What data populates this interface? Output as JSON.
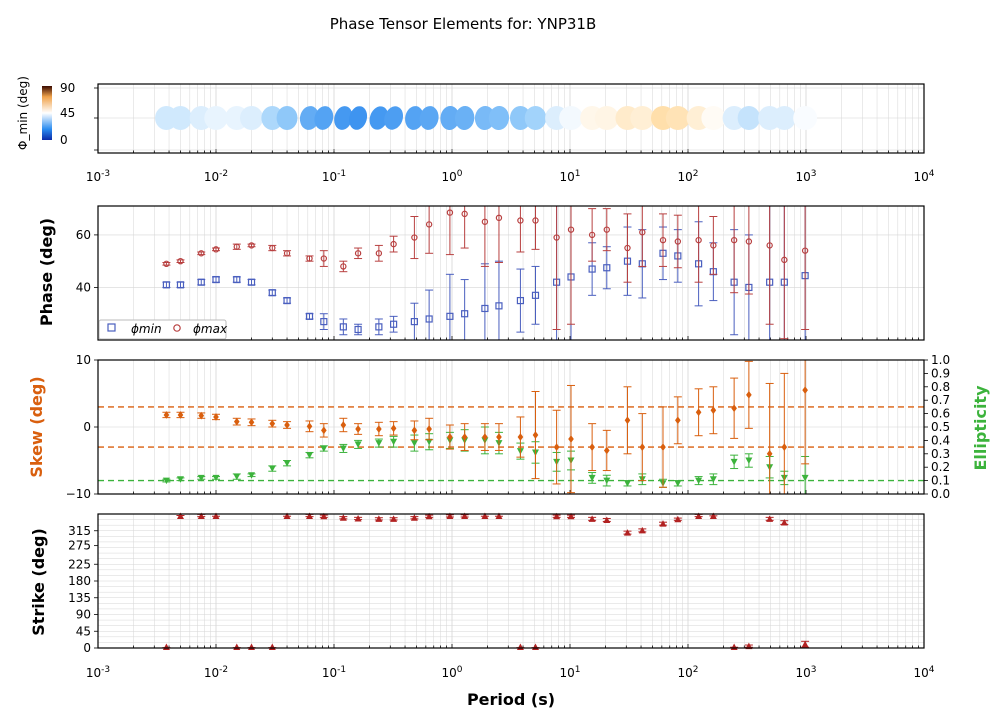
{
  "title": "Phase Tensor Elements for: YNP31B",
  "colors": {
    "phimin": "#4a5fbf",
    "phimax": "#b84040",
    "skew": "#d95f0e",
    "ellipticity": "#3cb33c",
    "strike": "#b22222",
    "grid": "#d6d6d6"
  },
  "chart_data": [
    {
      "type": "scatter",
      "panel": "ellipses",
      "ylabel": "Φ_min (deg)",
      "colorbar": {
        "ticks": [
          "0",
          "45",
          "90"
        ],
        "colormap": "blue-white-orange"
      },
      "x_scale": "log",
      "xlim": [
        0.001,
        10000
      ],
      "x_ticks": [
        "10^-3",
        "10^-2",
        "10^-1",
        "10^0",
        "10^1",
        "10^2",
        "10^3",
        "10^4"
      ],
      "ellipses": [
        {
          "period": 0.0038,
          "phimin": 41,
          "angle": 0
        },
        {
          "period": 0.005,
          "phimin": 41,
          "angle": 0
        },
        {
          "period": 0.0075,
          "phimin": 42,
          "angle": 0
        },
        {
          "period": 0.01,
          "phimin": 43,
          "angle": 0
        },
        {
          "period": 0.015,
          "phimin": 43,
          "angle": 0
        },
        {
          "period": 0.02,
          "phimin": 42,
          "angle": 0
        },
        {
          "period": 0.03,
          "phimin": 38,
          "angle": 0
        },
        {
          "period": 0.04,
          "phimin": 35,
          "angle": 0
        },
        {
          "period": 0.062,
          "phimin": 29,
          "angle": 10
        },
        {
          "period": 0.082,
          "phimin": 27,
          "angle": 15
        },
        {
          "period": 0.12,
          "phimin": 25,
          "angle": 15
        },
        {
          "period": 0.16,
          "phimin": 24,
          "angle": 15
        },
        {
          "period": 0.24,
          "phimin": 25,
          "angle": 20
        },
        {
          "period": 0.32,
          "phimin": 26,
          "angle": 20
        },
        {
          "period": 0.48,
          "phimin": 27,
          "angle": 10
        },
        {
          "period": 0.64,
          "phimin": 28,
          "angle": 10
        },
        {
          "period": 0.96,
          "phimin": 29,
          "angle": 5
        },
        {
          "period": 1.28,
          "phimin": 30,
          "angle": 5
        },
        {
          "period": 1.9,
          "phimin": 32,
          "angle": 5
        },
        {
          "period": 2.5,
          "phimin": 33,
          "angle": 5
        },
        {
          "period": 3.8,
          "phimin": 35,
          "angle": 0
        },
        {
          "period": 5.1,
          "phimin": 37,
          "angle": 0
        },
        {
          "period": 7.7,
          "phimin": 42,
          "angle": 0
        },
        {
          "period": 10.2,
          "phimin": 44,
          "angle": 0
        },
        {
          "period": 15.4,
          "phimin": 47,
          "angle": 0
        },
        {
          "period": 20.5,
          "phimin": 47.5,
          "angle": 0
        },
        {
          "period": 30.7,
          "phimin": 50,
          "angle": 0
        },
        {
          "period": 41.0,
          "phimin": 49,
          "angle": 0
        },
        {
          "period": 61.4,
          "phimin": 53,
          "angle": 0
        },
        {
          "period": 82.0,
          "phimin": 52,
          "angle": 0
        },
        {
          "period": 123.0,
          "phimin": 49,
          "angle": 0
        },
        {
          "period": 164.0,
          "phimin": 46,
          "angle": 0
        },
        {
          "period": 246.0,
          "phimin": 42,
          "angle": 0
        },
        {
          "period": 328.0,
          "phimin": 40,
          "angle": 0
        },
        {
          "period": 492.0,
          "phimin": 42,
          "angle": 0
        },
        {
          "period": 655.0,
          "phimin": 42,
          "angle": 0
        },
        {
          "period": 983.0,
          "phimin": 44.5,
          "angle": 0
        }
      ]
    },
    {
      "type": "scatter",
      "panel": "phase",
      "ylabel": "Phase (deg)",
      "x_scale": "log",
      "xlim": [
        0.001,
        10000
      ],
      "ylim": [
        20,
        71
      ],
      "y_ticks": [
        40,
        60
      ],
      "legend": {
        "placement": "bottom-left",
        "entries": [
          "ϕmin",
          "ϕmax"
        ]
      },
      "series": [
        {
          "name": "ϕmin",
          "marker": "square",
          "x": [
            0.0038,
            0.005,
            0.0075,
            0.01,
            0.015,
            0.02,
            0.03,
            0.04,
            0.062,
            0.082,
            0.12,
            0.16,
            0.24,
            0.32,
            0.48,
            0.64,
            0.96,
            1.28,
            1.9,
            2.5,
            3.8,
            5.1,
            7.7,
            10.2,
            15.4,
            20.5,
            30.7,
            41.0,
            61.4,
            82.0,
            123.0,
            164.0,
            246.0,
            328.0,
            492.0,
            655.0,
            983.0
          ],
          "y": [
            41,
            41,
            42,
            43,
            43,
            42,
            38,
            35,
            29,
            27,
            25,
            24,
            25,
            26,
            27,
            28,
            29,
            30,
            32,
            33,
            35,
            37,
            42,
            44,
            47,
            47.5,
            50,
            49,
            53,
            52,
            49,
            46,
            42,
            40,
            42,
            42,
            44.5
          ],
          "err": [
            1,
            1,
            1,
            1,
            1,
            1,
            1,
            1,
            1,
            3,
            3,
            2,
            3,
            3,
            7,
            11,
            16,
            13,
            17,
            17,
            12,
            11,
            35,
            31,
            10,
            8,
            13,
            13,
            10,
            10,
            16,
            11,
            20,
            20,
            30,
            30,
            30
          ]
        },
        {
          "name": "ϕmax",
          "marker": "circle",
          "x": [
            0.0038,
            0.005,
            0.0075,
            0.01,
            0.015,
            0.02,
            0.03,
            0.04,
            0.062,
            0.082,
            0.12,
            0.16,
            0.24,
            0.32,
            0.48,
            0.64,
            0.96,
            1.28,
            1.9,
            2.5,
            3.8,
            5.1,
            7.7,
            10.2,
            15.4,
            20.5,
            30.7,
            41.0,
            61.4,
            82.0,
            123.0,
            164.0,
            246.0,
            328.0,
            492.0,
            655.0,
            983.0
          ],
          "y": [
            49,
            50,
            53,
            54.5,
            55.5,
            56,
            55,
            53,
            51,
            51,
            48,
            53,
            53,
            56.5,
            59,
            64,
            68.5,
            68,
            65,
            66.5,
            65.5,
            65.5,
            59,
            62,
            60,
            62,
            55,
            61,
            58,
            57.5,
            58,
            56,
            58,
            57.5,
            56,
            50.5,
            54
          ],
          "err": [
            0.5,
            0.5,
            0.5,
            0.5,
            1,
            0.5,
            1,
            1,
            1,
            3,
            2,
            2,
            3,
            3,
            8,
            11,
            16,
            13,
            17,
            17,
            12,
            11,
            35,
            36,
            10,
            8,
            13,
            13,
            10,
            10,
            16,
            11,
            20,
            20,
            30,
            30,
            30
          ]
        }
      ]
    },
    {
      "type": "scatter",
      "panel": "skew-ellipticity",
      "ylabel": "Skew (deg)",
      "ylabel_right": "Ellipticity",
      "x_scale": "log",
      "xlim": [
        0.001,
        10000
      ],
      "ylim": [
        -10,
        10
      ],
      "ylim_right": [
        0,
        1
      ],
      "y_ticks": [
        -10,
        0,
        10
      ],
      "y_ticks_right": [
        "0.0",
        "0.1",
        "0.2",
        "0.3",
        "0.4",
        "0.5",
        "0.6",
        "0.7",
        "0.8",
        "0.9",
        "1.0"
      ],
      "reference_lines_skew": [
        3,
        -3
      ],
      "reference_line_ellipticity": 0.1,
      "series": [
        {
          "name": "Skew",
          "marker": "diamond",
          "x": [
            0.0038,
            0.005,
            0.0075,
            0.01,
            0.015,
            0.02,
            0.03,
            0.04,
            0.062,
            0.082,
            0.12,
            0.16,
            0.24,
            0.32,
            0.48,
            0.64,
            0.96,
            1.28,
            1.9,
            2.5,
            3.8,
            5.1,
            7.7,
            10.2,
            15.4,
            20.5,
            30.7,
            41.0,
            61.4,
            82.0,
            123.0,
            164.0,
            246.0,
            328.0,
            492.0,
            655.0,
            983.0
          ],
          "y": [
            1.8,
            1.8,
            1.7,
            1.5,
            0.8,
            0.7,
            0.5,
            0.3,
            0.1,
            -0.5,
            0.3,
            -0.3,
            -0.3,
            -0.2,
            -0.5,
            -0.3,
            -1.5,
            -1.5,
            -1.5,
            -1.5,
            -1.5,
            -1.2,
            -3.0,
            -1.8,
            -3.0,
            -3.5,
            1.0,
            -3.0,
            -3.0,
            1.0,
            2.2,
            2.5,
            2.8,
            4.8,
            -4.0,
            -3.0,
            5.5
          ],
          "err": [
            0.4,
            0.4,
            0.4,
            0.4,
            0.5,
            0.5,
            0.5,
            0.5,
            0.8,
            1.0,
            1.0,
            0.8,
            1.0,
            1.0,
            1.4,
            1.6,
            1.8,
            2.0,
            2.0,
            2.0,
            3.0,
            6.5,
            5.5,
            8.0,
            3.5,
            3.0,
            5.0,
            5.0,
            6.0,
            3.5,
            3.5,
            3.5,
            4.5,
            5.0,
            10.5,
            11.0,
            11.0
          ]
        },
        {
          "name": "Ellipticity",
          "marker": "triangle-down",
          "x": [
            0.0038,
            0.005,
            0.0075,
            0.01,
            0.015,
            0.02,
            0.03,
            0.04,
            0.062,
            0.082,
            0.12,
            0.16,
            0.24,
            0.32,
            0.48,
            0.64,
            0.96,
            1.28,
            1.9,
            2.5,
            3.8,
            5.1,
            7.7,
            10.2,
            15.4,
            20.5,
            30.7,
            41.0,
            61.4,
            82.0,
            123.0,
            164.0,
            246.0,
            328.0,
            492.0,
            655.0,
            983.0
          ],
          "y": [
            0.1,
            0.11,
            0.12,
            0.12,
            0.13,
            0.14,
            0.19,
            0.23,
            0.29,
            0.34,
            0.34,
            0.37,
            0.38,
            0.39,
            0.38,
            0.39,
            0.4,
            0.4,
            0.4,
            0.38,
            0.32,
            0.31,
            0.24,
            0.25,
            0.12,
            0.1,
            0.08,
            0.11,
            0.08,
            0.08,
            0.1,
            0.11,
            0.24,
            0.25,
            0.2,
            0.12,
            0.12
          ],
          "err": [
            0.01,
            0.01,
            0.01,
            0.01,
            0.02,
            0.01,
            0.02,
            0.02,
            0.02,
            0.02,
            0.03,
            0.03,
            0.03,
            0.04,
            0.06,
            0.06,
            0.06,
            0.08,
            0.1,
            0.08,
            0.06,
            0.08,
            0.07,
            0.07,
            0.04,
            0.04,
            0.02,
            0.04,
            0.03,
            0.02,
            0.03,
            0.04,
            0.05,
            0.05,
            0.08,
            0.05,
            0.16
          ]
        }
      ]
    },
    {
      "type": "scatter",
      "panel": "strike",
      "ylabel": "Strike (deg)",
      "xlabel": "Period (s)",
      "x_scale": "log",
      "xlim": [
        0.001,
        10000
      ],
      "ylim": [
        0,
        360
      ],
      "y_ticks": [
        "0",
        "45",
        "90",
        "135",
        "180",
        "225",
        "275",
        "315"
      ],
      "x_ticks": [
        "10^-3",
        "10^-2",
        "10^-1",
        "10^0",
        "10^1",
        "10^2",
        "10^3",
        "10^4"
      ],
      "series": [
        {
          "name": "Strike",
          "marker": "triangle-up",
          "x": [
            0.005,
            0.0075,
            0.01,
            0.04,
            0.062,
            0.082,
            0.12,
            0.16,
            0.24,
            0.32,
            0.48,
            0.64,
            0.96,
            1.28,
            1.9,
            2.5,
            7.7,
            10.2,
            15.4,
            20.5,
            30.7,
            41.0,
            61.4,
            82.0,
            123.0,
            164.0,
            492.0,
            655.0,
            0.0038,
            0.015,
            0.02,
            0.03,
            3.8,
            5.1,
            246.0,
            328.0,
            983.0
          ],
          "y": [
            358,
            356,
            357,
            357,
            356,
            354,
            350,
            348,
            347,
            347,
            350,
            354,
            355,
            355,
            357,
            357,
            354,
            354,
            347,
            344,
            310,
            316,
            334,
            346,
            356,
            358,
            347,
            337,
            0,
            0,
            0,
            0,
            0,
            0,
            0,
            5,
            10
          ],
          "err": [
            2,
            3,
            3,
            3,
            3,
            3,
            3,
            3,
            3,
            3,
            3,
            3,
            3,
            3,
            3,
            3,
            3,
            3,
            4,
            4,
            4,
            4,
            4,
            3,
            3,
            3,
            4,
            5,
            1,
            1,
            1,
            1,
            1,
            1,
            2,
            3,
            8
          ]
        }
      ]
    }
  ]
}
